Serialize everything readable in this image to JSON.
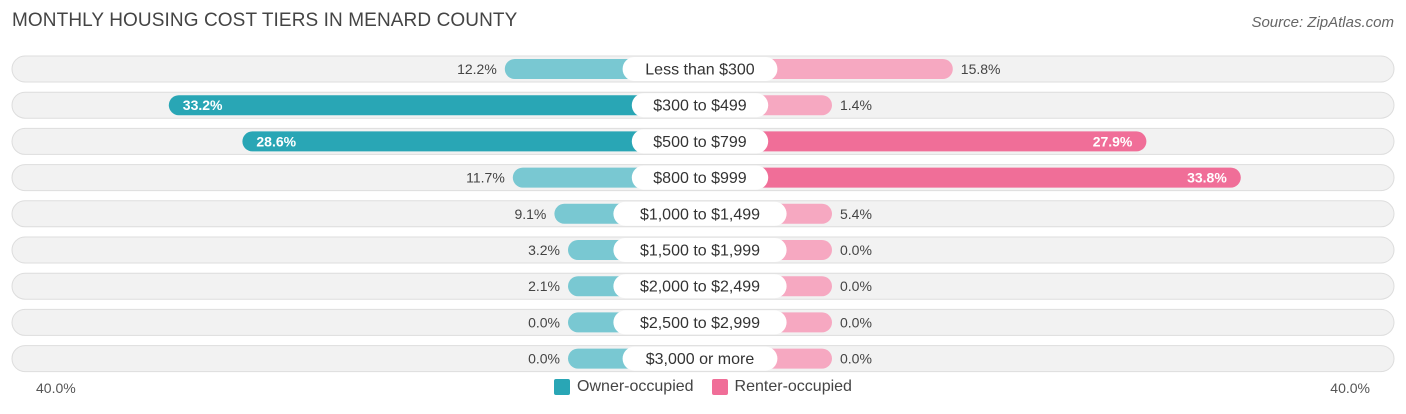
{
  "title": "MONTHLY HOUSING COST TIERS IN MENARD COUNTY",
  "source": "Source: ZipAtlas.com",
  "colors": {
    "owner_strong": "#29a6b5",
    "owner_light": "#79c8d2",
    "renter_strong": "#f06e98",
    "renter_light": "#f6a8c1"
  },
  "chart_data": {
    "type": "bar",
    "layout": "diverging-horizontal",
    "categories": [
      "Less than $300",
      "$300 to $499",
      "$500 to $799",
      "$800 to $999",
      "$1,000 to $1,499",
      "$1,500 to $1,999",
      "$2,000 to $2,499",
      "$2,500 to $2,999",
      "$3,000 or more"
    ],
    "series": [
      {
        "name": "Owner-occupied",
        "side": "left",
        "values": [
          12.2,
          33.2,
          28.6,
          11.7,
          9.1,
          3.2,
          2.1,
          0.0,
          0.0
        ]
      },
      {
        "name": "Renter-occupied",
        "side": "right",
        "values": [
          15.8,
          1.4,
          27.9,
          33.8,
          5.4,
          0.0,
          0.0,
          0.0,
          0.0
        ]
      }
    ],
    "xlim": [
      -40,
      40
    ],
    "axis_labels": {
      "left": "40.0%",
      "right": "40.0%"
    },
    "legend": "bottom-center",
    "value_suffix": "%"
  }
}
